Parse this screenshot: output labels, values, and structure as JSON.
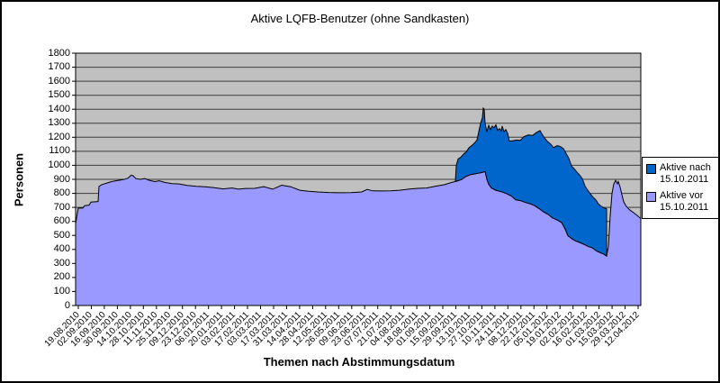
{
  "title": "Aktive LQFB-Benutzer (ohne Sandkasten)",
  "colors": {
    "area_vor": "#9999FF",
    "area_nach": "#0066CC",
    "plot_bg": "#C0C0C0",
    "gridline": "#3C3C3C",
    "series_outline": "#000000",
    "axis": "#000000"
  },
  "legend": {
    "entries": [
      {
        "label_line1": "Aktive nach",
        "label_line2": "15.10.2011",
        "color": "#0066CC"
      },
      {
        "label_line1": "Aktive vor",
        "label_line2": "15.10.2011",
        "color": "#9999FF"
      }
    ]
  },
  "chart_data": {
    "type": "area",
    "stacked": true,
    "title": "Aktive LQFB-Benutzer (ohne Sandkasten)",
    "xlabel": "Themen nach Abstimmungsdatum",
    "ylabel": "Personen",
    "ylim": [
      0,
      1800
    ],
    "grid": "horizontal",
    "legend_position": "right",
    "y_ticks": [
      0,
      100,
      200,
      300,
      400,
      500,
      600,
      700,
      800,
      900,
      1000,
      1100,
      1200,
      1300,
      1400,
      1500,
      1600,
      1700,
      1800
    ],
    "x_tick_labels": [
      "19.08.2010",
      "02.09.2010",
      "16.09.2010",
      "30.09.2010",
      "14.10.2010",
      "28.10.2010",
      "11.11.2010",
      "25.11.2010",
      "09.12.2010",
      "23.12.2010",
      "06.01.2011",
      "20.01.2011",
      "03.02.2011",
      "17.02.2011",
      "03.03.2011",
      "17.03.2011",
      "31.03.2011",
      "14.04.2011",
      "28.04.2011",
      "12.05.2011",
      "26.05.2011",
      "09.06.2011",
      "23.06.2011",
      "07.07.2011",
      "21.07.2011",
      "04.08.2011",
      "18.08.2011",
      "01.09.2011",
      "15.09.2011",
      "29.09.2011",
      "13.10.2011",
      "27.10.2011",
      "10.11.2011",
      "24.11.2011",
      "08.12.2011",
      "22.12.2011",
      "05.01.2012",
      "19.01.2012",
      "02.02.2012",
      "16.02.2012",
      "01.03.2012",
      "15.03.2012",
      "29.03.2012",
      "12.04.2012"
    ],
    "points_format": "[x_fraction_of_axis, persons]; series 'Aktive nach 15.10.2011' is stored as the stacked TOTAL upper boundary (vor + nach)",
    "series": [
      {
        "name": "Aktive vor 15.10.2011",
        "color": "#9999FF",
        "points": [
          [
            0.0,
            585
          ],
          [
            0.0032,
            660
          ],
          [
            0.0048,
            695
          ],
          [
            0.0127,
            695
          ],
          [
            0.0159,
            712
          ],
          [
            0.0239,
            716
          ],
          [
            0.0271,
            738
          ],
          [
            0.0398,
            742
          ],
          [
            0.0414,
            850
          ],
          [
            0.0462,
            862
          ],
          [
            0.0541,
            872
          ],
          [
            0.0637,
            884
          ],
          [
            0.0748,
            892
          ],
          [
            0.0844,
            898
          ],
          [
            0.0924,
            908
          ],
          [
            0.0987,
            930
          ],
          [
            0.1019,
            925
          ],
          [
            0.1067,
            905
          ],
          [
            0.1146,
            900
          ],
          [
            0.1226,
            906
          ],
          [
            0.1306,
            893
          ],
          [
            0.1401,
            884
          ],
          [
            0.1481,
            890
          ],
          [
            0.1576,
            878
          ],
          [
            0.1704,
            870
          ],
          [
            0.1831,
            867
          ],
          [
            0.1975,
            856
          ],
          [
            0.2134,
            850
          ],
          [
            0.2293,
            847
          ],
          [
            0.2452,
            840
          ],
          [
            0.2611,
            832
          ],
          [
            0.2771,
            838
          ],
          [
            0.2882,
            830
          ],
          [
            0.301,
            835
          ],
          [
            0.3169,
            836
          ],
          [
            0.3328,
            848
          ],
          [
            0.3487,
            830
          ],
          [
            0.3646,
            858
          ],
          [
            0.3805,
            847
          ],
          [
            0.3965,
            822
          ],
          [
            0.4124,
            815
          ],
          [
            0.4283,
            810
          ],
          [
            0.4474,
            806
          ],
          [
            0.4665,
            804
          ],
          [
            0.4873,
            805
          ],
          [
            0.5064,
            810
          ],
          [
            0.5159,
            828
          ],
          [
            0.5255,
            818
          ],
          [
            0.5414,
            817
          ],
          [
            0.5573,
            818
          ],
          [
            0.5732,
            822
          ],
          [
            0.5892,
            830
          ],
          [
            0.6051,
            836
          ],
          [
            0.621,
            838
          ],
          [
            0.6369,
            851
          ],
          [
            0.6529,
            862
          ],
          [
            0.6656,
            878
          ],
          [
            0.6752,
            888
          ],
          [
            0.6831,
            900
          ],
          [
            0.6911,
            922
          ],
          [
            0.699,
            934
          ],
          [
            0.7086,
            941
          ],
          [
            0.7181,
            948
          ],
          [
            0.7245,
            955
          ],
          [
            0.7277,
            900
          ],
          [
            0.7309,
            865
          ],
          [
            0.7357,
            838
          ],
          [
            0.7436,
            822
          ],
          [
            0.7532,
            812
          ],
          [
            0.7627,
            798
          ],
          [
            0.7707,
            782
          ],
          [
            0.7787,
            755
          ],
          [
            0.7882,
            747
          ],
          [
            0.7962,
            735
          ],
          [
            0.8042,
            726
          ],
          [
            0.8121,
            712
          ],
          [
            0.8201,
            692
          ],
          [
            0.828,
            668
          ],
          [
            0.836,
            650
          ],
          [
            0.8439,
            625
          ],
          [
            0.8519,
            610
          ],
          [
            0.8599,
            592
          ],
          [
            0.8662,
            545
          ],
          [
            0.871,
            498
          ],
          [
            0.8774,
            478
          ],
          [
            0.8837,
            462
          ],
          [
            0.8917,
            450
          ],
          [
            0.8997,
            436
          ],
          [
            0.9076,
            420
          ],
          [
            0.914,
            412
          ],
          [
            0.9219,
            388
          ],
          [
            0.9299,
            374
          ],
          [
            0.9347,
            366
          ],
          [
            0.9395,
            352
          ],
          [
            0.9427,
            420
          ],
          [
            0.9459,
            640
          ],
          [
            0.949,
            800
          ],
          [
            0.9522,
            868
          ],
          [
            0.9554,
            892
          ],
          [
            0.9586,
            868
          ],
          [
            0.9602,
            884
          ],
          [
            0.9634,
            845
          ],
          [
            0.9666,
            790
          ],
          [
            0.9697,
            740
          ],
          [
            0.9745,
            706
          ],
          [
            0.9809,
            680
          ],
          [
            0.9873,
            662
          ],
          [
            0.9936,
            642
          ],
          [
            1.0,
            620
          ]
        ]
      },
      {
        "name": "Aktive nach 15.10.2011",
        "color": "#0066CC",
        "points": [
          [
            0.672,
            890
          ],
          [
            0.6736,
            1000
          ],
          [
            0.6768,
            1045
          ],
          [
            0.6815,
            1058
          ],
          [
            0.6863,
            1080
          ],
          [
            0.6911,
            1095
          ],
          [
            0.6959,
            1125
          ],
          [
            0.7006,
            1140
          ],
          [
            0.7054,
            1158
          ],
          [
            0.7102,
            1180
          ],
          [
            0.7134,
            1240
          ],
          [
            0.7166,
            1300
          ],
          [
            0.7197,
            1340
          ],
          [
            0.7213,
            1408
          ],
          [
            0.7229,
            1400
          ],
          [
            0.7245,
            1300
          ],
          [
            0.7277,
            1240
          ],
          [
            0.7309,
            1285
          ],
          [
            0.7341,
            1255
          ],
          [
            0.7373,
            1280
          ],
          [
            0.7404,
            1268
          ],
          [
            0.7436,
            1288
          ],
          [
            0.7468,
            1250
          ],
          [
            0.75,
            1262
          ],
          [
            0.7532,
            1246
          ],
          [
            0.7548,
            1280
          ],
          [
            0.758,
            1240
          ],
          [
            0.7611,
            1255
          ],
          [
            0.7643,
            1230
          ],
          [
            0.7675,
            1172
          ],
          [
            0.7739,
            1176
          ],
          [
            0.7803,
            1180
          ],
          [
            0.7866,
            1178
          ],
          [
            0.793,
            1204
          ],
          [
            0.801,
            1216
          ],
          [
            0.8089,
            1214
          ],
          [
            0.8153,
            1234
          ],
          [
            0.8217,
            1248
          ],
          [
            0.828,
            1204
          ],
          [
            0.8344,
            1172
          ],
          [
            0.8408,
            1150
          ],
          [
            0.8456,
            1126
          ],
          [
            0.8519,
            1140
          ],
          [
            0.8567,
            1136
          ],
          [
            0.8631,
            1120
          ],
          [
            0.8678,
            1085
          ],
          [
            0.8726,
            1050
          ],
          [
            0.8774,
            995
          ],
          [
            0.8822,
            975
          ],
          [
            0.8869,
            952
          ],
          [
            0.8917,
            930
          ],
          [
            0.8965,
            905
          ],
          [
            0.9013,
            852
          ],
          [
            0.9061,
            822
          ],
          [
            0.9108,
            796
          ],
          [
            0.9156,
            772
          ],
          [
            0.9204,
            754
          ],
          [
            0.9252,
            724
          ],
          [
            0.9299,
            708
          ],
          [
            0.9347,
            696
          ],
          [
            0.9395,
            690
          ]
        ]
      }
    ]
  }
}
